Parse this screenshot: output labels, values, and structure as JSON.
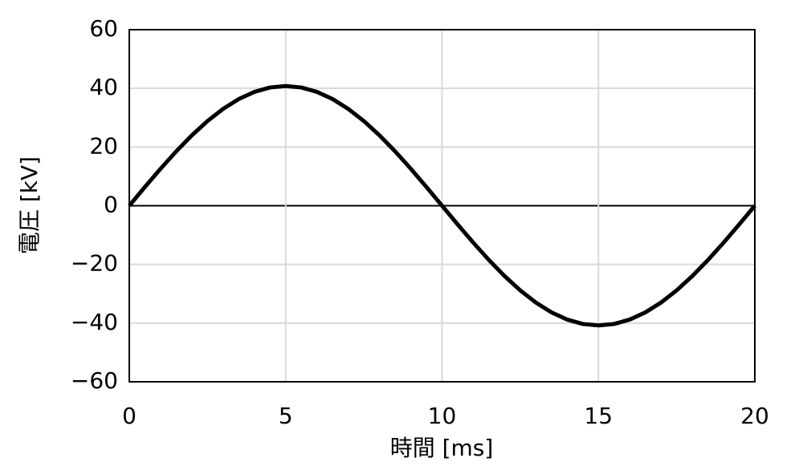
{
  "chart_data": {
    "type": "line",
    "xlabel": "時間 [ms]",
    "ylabel": "電圧 [kV]",
    "x": [
      0,
      0.5,
      1,
      1.5,
      2,
      2.5,
      3,
      3.5,
      4,
      4.5,
      5,
      5.5,
      6,
      6.5,
      7,
      7.5,
      8,
      8.5,
      9,
      9.5,
      10,
      10.5,
      11,
      11.5,
      12,
      12.5,
      13,
      13.5,
      14,
      14.5,
      15,
      15.5,
      16,
      16.5,
      17,
      17.5,
      18,
      18.5,
      19,
      19.5,
      20
    ],
    "series": [
      {
        "color": "#000000",
        "values": [
          0,
          6.38,
          12.61,
          18.52,
          23.98,
          28.85,
          33.01,
          36.35,
          38.8,
          40.3,
          40.8,
          40.3,
          38.8,
          36.35,
          33.01,
          28.85,
          23.98,
          18.52,
          12.61,
          6.38,
          0,
          -6.38,
          -12.61,
          -18.52,
          -23.98,
          -28.85,
          -33.01,
          -36.35,
          -38.8,
          -40.3,
          -40.8,
          -40.3,
          -38.8,
          -36.35,
          -33.01,
          -28.85,
          -23.98,
          -18.52,
          -12.61,
          -6.38,
          0
        ]
      }
    ],
    "xlim": [
      0,
      20
    ],
    "xticks": [
      0,
      5,
      10,
      15,
      20
    ],
    "ylim": [
      -60,
      60
    ],
    "yticks": [
      {
        "value": -60,
        "label": "−60"
      },
      {
        "value": -40,
        "label": "−40"
      },
      {
        "value": -20,
        "label": "−20"
      },
      0,
      20,
      40,
      60
    ],
    "grid": true
  }
}
